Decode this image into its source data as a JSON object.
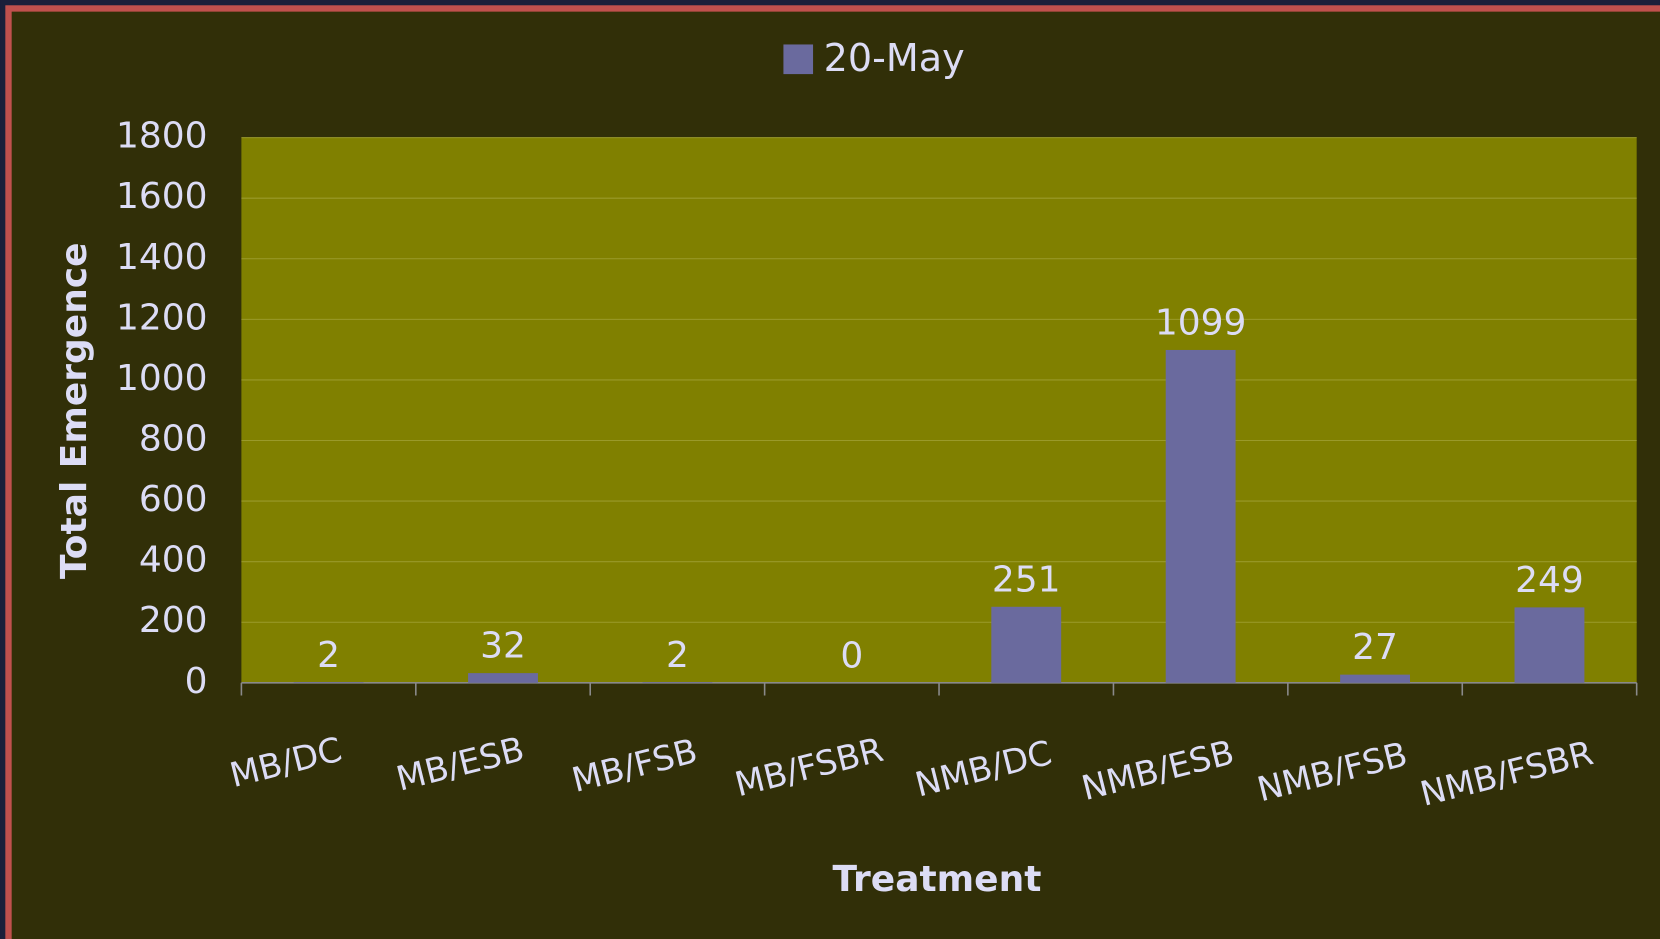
{
  "chart_data": {
    "type": "bar",
    "xlabel": "Treatment",
    "ylabel": "Total Emergence",
    "categories": [
      "MB/DC",
      "MB/ESB",
      "MB/FSB",
      "MB/FSBR",
      "NMB/DC",
      "NMB/ESB",
      "NMB/FSB",
      "NMB/FSBR"
    ],
    "series": [
      {
        "name": "20-May",
        "color": "#6a6a9e",
        "values": [
          2,
          32,
          2,
          0,
          251,
          1099,
          27,
          249
        ]
      }
    ],
    "ylim": [
      0,
      1800
    ],
    "yticks": [
      0,
      200,
      400,
      600,
      800,
      1000,
      1200,
      1400,
      1600,
      1800
    ],
    "grid": true,
    "legend": "top"
  }
}
